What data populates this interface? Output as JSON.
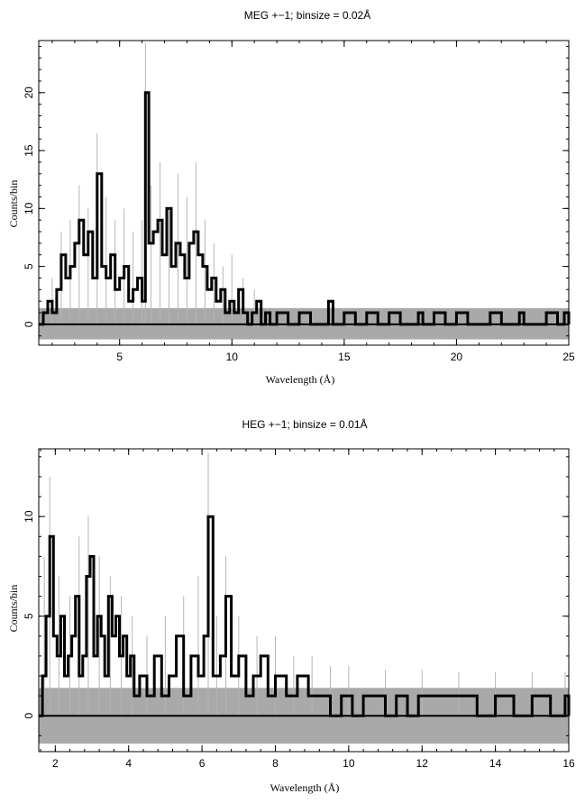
{
  "chart_data": [
    {
      "type": "step",
      "title": "MEG +−1; binsize = 0.02Å",
      "xlabel": "Wavelength (Å)",
      "ylabel": "Counts/bin",
      "xlim": [
        1.4,
        25.0
      ],
      "ylim": [
        -1.8,
        24.5
      ],
      "xticks": [
        5,
        10,
        15,
        20,
        25
      ],
      "yticks": [
        0,
        5,
        10,
        15,
        20
      ],
      "background_band": [
        -1.3,
        1.4
      ],
      "series": [
        {
          "style": "black-step",
          "x": [
            1.4,
            1.6,
            1.8,
            2.0,
            2.2,
            2.4,
            2.6,
            2.8,
            3.0,
            3.2,
            3.4,
            3.6,
            3.8,
            4.0,
            4.2,
            4.4,
            4.6,
            4.8,
            5.0,
            5.2,
            5.4,
            5.6,
            5.8,
            6.0,
            6.15,
            6.3,
            6.5,
            6.7,
            6.9,
            7.1,
            7.3,
            7.5,
            7.7,
            7.9,
            8.1,
            8.3,
            8.5,
            8.7,
            8.9,
            9.1,
            9.3,
            9.5,
            9.7,
            9.9,
            10.1,
            10.3,
            10.5,
            10.7,
            10.9,
            11.1,
            11.3,
            11.5,
            11.7,
            12.0,
            12.5,
            13.0,
            13.5,
            14.0,
            14.3,
            14.5,
            15.0,
            15.5,
            16.0,
            16.5,
            17.0,
            17.5,
            18.0,
            18.3,
            18.5,
            19.0,
            19.5,
            20.0,
            20.5,
            21.0,
            21.5,
            22.0,
            22.5,
            22.8,
            23.0,
            23.5,
            24.0,
            24.5,
            24.8,
            25.0
          ],
          "y": [
            0,
            1,
            2,
            1,
            3,
            6,
            4,
            5,
            7,
            9,
            6,
            8,
            4,
            13,
            5,
            4,
            6,
            3,
            4,
            5,
            2,
            3,
            4,
            2,
            20,
            7,
            8,
            9,
            6,
            10,
            5,
            7,
            6,
            4,
            7,
            8,
            6,
            5,
            3,
            4,
            2,
            3,
            1,
            2,
            1,
            3,
            1,
            0,
            1,
            2,
            0,
            1,
            0,
            1,
            0,
            1,
            0,
            0,
            2,
            0,
            1,
            0,
            1,
            0,
            1,
            0,
            0,
            1,
            0,
            1,
            0,
            1,
            0,
            0,
            1,
            0,
            0,
            1,
            0,
            0,
            1,
            0,
            1,
            0
          ]
        },
        {
          "style": "gray-error",
          "x": [
            2.0,
            2.4,
            2.8,
            3.2,
            3.6,
            4.0,
            4.4,
            4.8,
            5.2,
            5.6,
            6.0,
            6.15,
            6.4,
            6.8,
            7.2,
            7.6,
            8.0,
            8.4,
            8.8,
            9.2,
            9.6,
            10.0,
            10.5,
            11.0
          ],
          "y": [
            4,
            8,
            9,
            12,
            10,
            16.5,
            11,
            9,
            10,
            8,
            9,
            24.3,
            12,
            14,
            10,
            13,
            11,
            14,
            9,
            7,
            5,
            6,
            4,
            3
          ]
        }
      ]
    },
    {
      "type": "step",
      "title": "HEG +−1; binsize = 0.01Å",
      "xlabel": "Wavelength (Å)",
      "ylabel": "Counts/bin",
      "xlim": [
        1.55,
        16.0
      ],
      "ylim": [
        -1.8,
        13.4
      ],
      "xticks": [
        2,
        4,
        6,
        8,
        10,
        12,
        14,
        16
      ],
      "yticks": [
        0,
        5,
        10
      ],
      "background_band": [
        -1.4,
        1.4
      ],
      "series": [
        {
          "style": "black-step",
          "x": [
            1.55,
            1.65,
            1.75,
            1.85,
            1.95,
            2.05,
            2.15,
            2.25,
            2.35,
            2.45,
            2.55,
            2.65,
            2.75,
            2.85,
            2.95,
            3.05,
            3.15,
            3.25,
            3.35,
            3.45,
            3.55,
            3.65,
            3.75,
            3.85,
            3.95,
            4.05,
            4.15,
            4.3,
            4.5,
            4.7,
            4.9,
            5.1,
            5.3,
            5.5,
            5.7,
            5.9,
            6.05,
            6.17,
            6.3,
            6.5,
            6.65,
            6.8,
            7.0,
            7.2,
            7.4,
            7.6,
            7.8,
            8.0,
            8.3,
            8.6,
            8.9,
            9.2,
            9.5,
            9.8,
            10.1,
            10.4,
            10.7,
            11.0,
            11.3,
            11.6,
            11.9,
            12.3,
            12.9,
            13.5,
            14.0,
            14.5,
            15.0,
            15.5,
            15.9,
            16.0
          ],
          "y": [
            0,
            2,
            5,
            9,
            4,
            3,
            5,
            2,
            3,
            4,
            6,
            2,
            3,
            7,
            8,
            3,
            5,
            4,
            2,
            6,
            4,
            5,
            3,
            4,
            2,
            3,
            1,
            2,
            1,
            3,
            1,
            2,
            4,
            1,
            3,
            2,
            4,
            10,
            2,
            3,
            6,
            2,
            3,
            1,
            2,
            3,
            1,
            2,
            1,
            2,
            1,
            1,
            0,
            1,
            0,
            1,
            1,
            0,
            1,
            0,
            1,
            1,
            1,
            0,
            1,
            0,
            1,
            0,
            1,
            0
          ]
        },
        {
          "style": "gray-error",
          "x": [
            1.7,
            1.85,
            2.1,
            2.4,
            2.65,
            2.9,
            3.2,
            3.5,
            3.8,
            4.1,
            4.5,
            5.0,
            5.5,
            5.9,
            6.17,
            6.4,
            6.65,
            7.0,
            7.5,
            8.0,
            8.5,
            9.0,
            9.5,
            10.0,
            11.0,
            12.0,
            13.0,
            14.0,
            15.0,
            15.9
          ],
          "y": [
            8,
            12,
            7,
            6,
            9,
            10,
            8,
            7,
            6,
            5,
            4,
            5,
            6,
            7,
            13.2,
            5,
            8,
            5,
            4,
            4,
            3,
            3,
            2.5,
            2.5,
            2.3,
            2.3,
            2.2,
            2.2,
            2.2,
            2.2
          ]
        }
      ]
    }
  ]
}
